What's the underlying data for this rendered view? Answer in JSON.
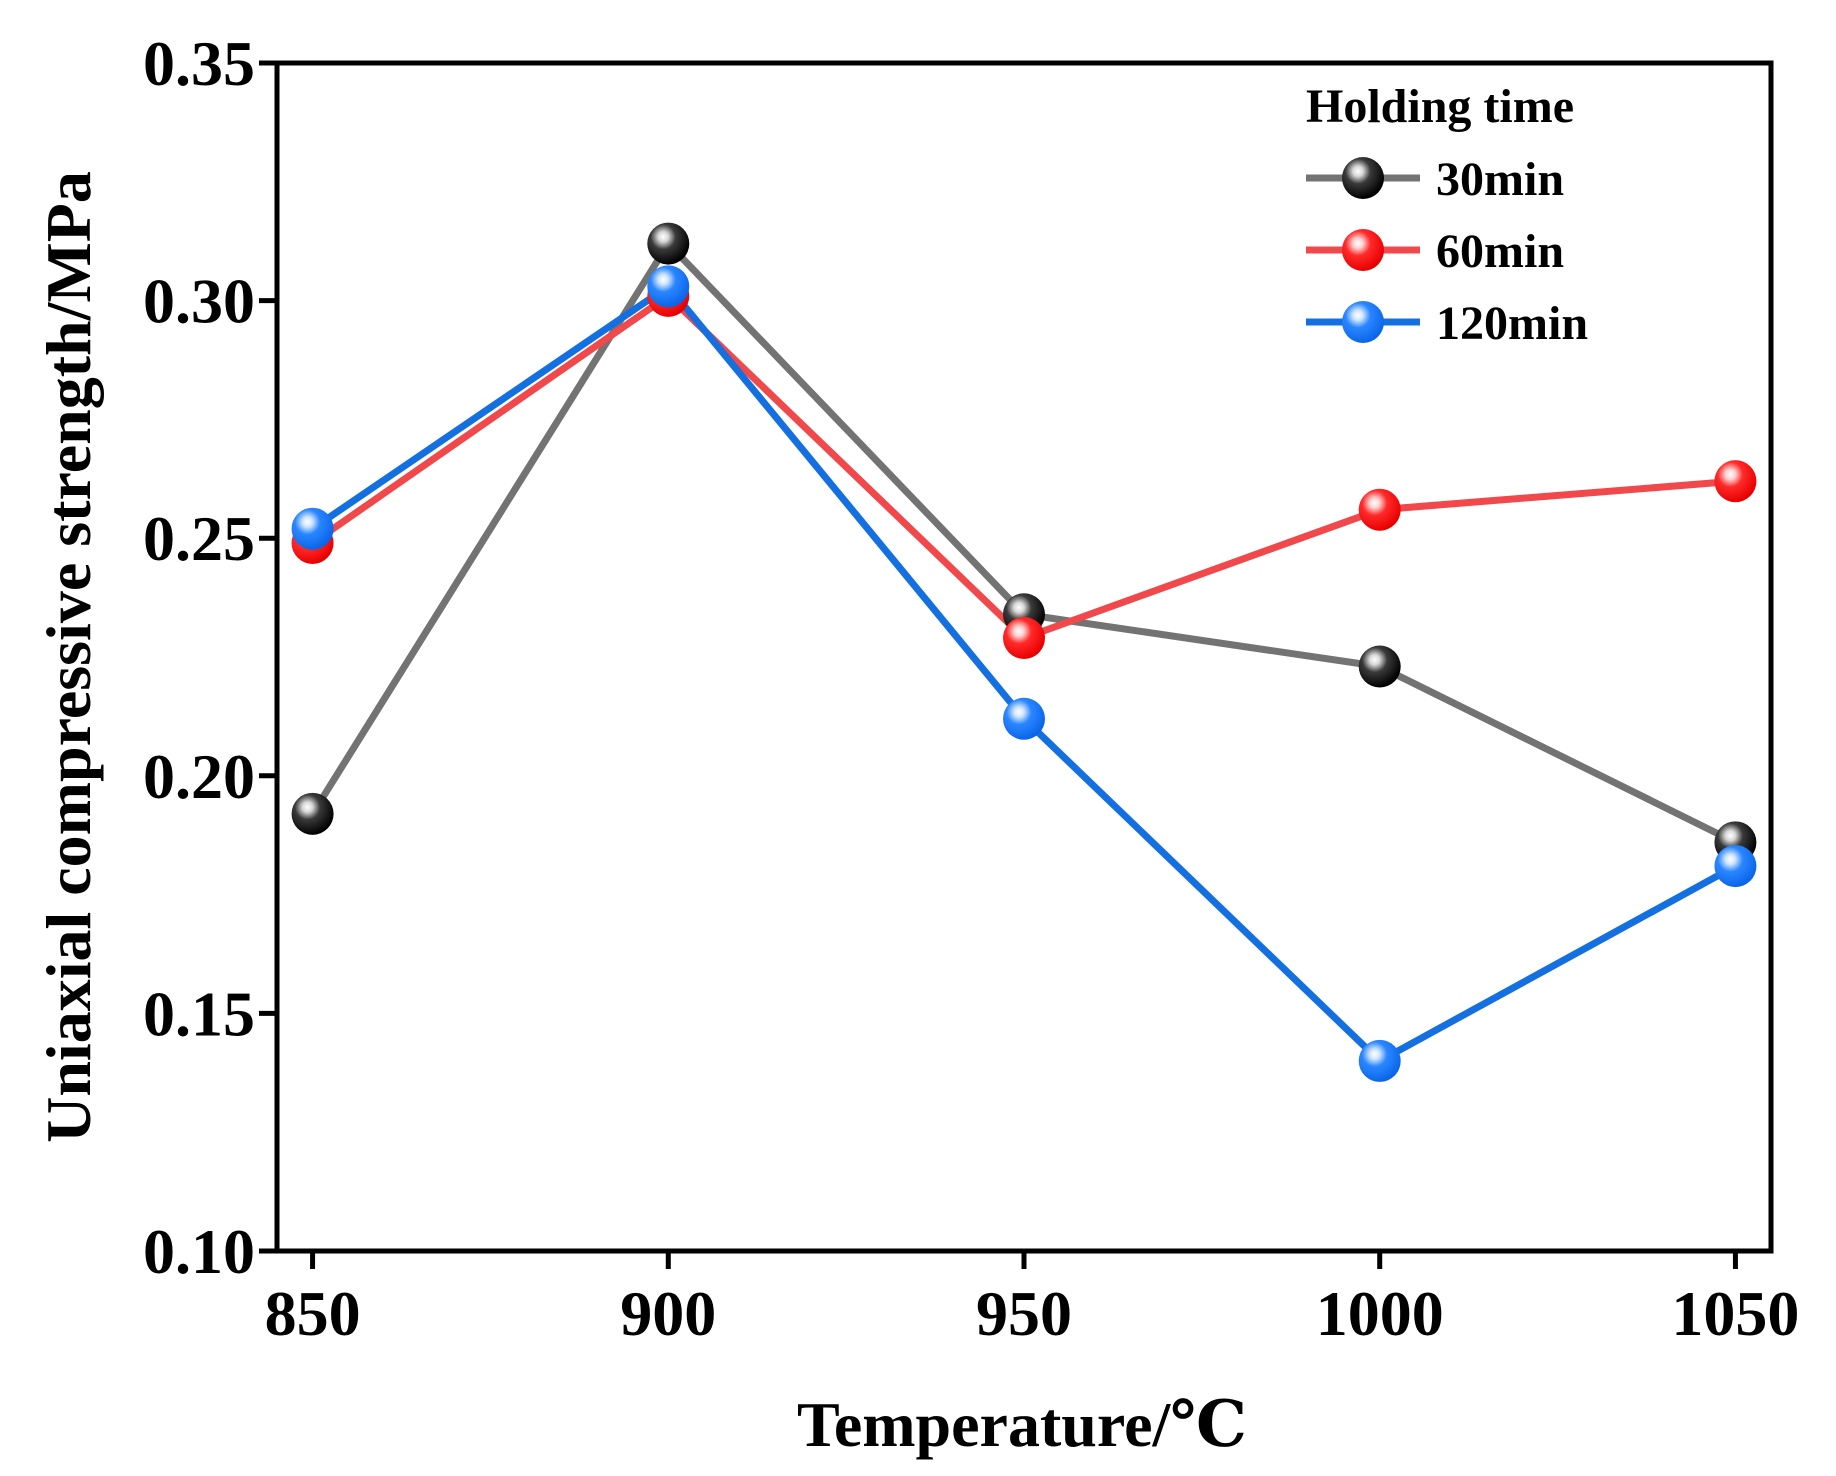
{
  "chart_data": {
    "type": "line",
    "xlabel": "Temperature/℃",
    "ylabel": "Uniaxial compressive strength/MPa",
    "x": [
      850,
      900,
      950,
      1000,
      1050
    ],
    "x_tick_labels": [
      "850",
      "900",
      "950",
      "1000",
      "1050"
    ],
    "xlim": [
      845,
      1055
    ],
    "ylim": [
      0.1,
      0.35
    ],
    "y_ticks": [
      0.1,
      0.15,
      0.2,
      0.25,
      0.3,
      0.35
    ],
    "y_tick_labels": [
      "0.10",
      "0.15",
      "0.20",
      "0.25",
      "0.30",
      "0.35"
    ],
    "grid": false,
    "legend": {
      "title": "Holding time",
      "placement": "top-right"
    },
    "series": [
      {
        "name": "30min",
        "line_color": "#737373",
        "marker_color": "#000000",
        "values": [
          0.192,
          0.312,
          0.234,
          0.223,
          0.186
        ]
      },
      {
        "name": "60min",
        "line_color": "#f0484b",
        "marker_color": "#ff0000",
        "values": [
          0.249,
          0.301,
          0.229,
          0.256,
          0.262
        ]
      },
      {
        "name": "120min",
        "line_color": "#1470e0",
        "marker_color": "#0a66e8",
        "values": [
          0.252,
          0.303,
          0.212,
          0.14,
          0.181
        ]
      }
    ]
  }
}
